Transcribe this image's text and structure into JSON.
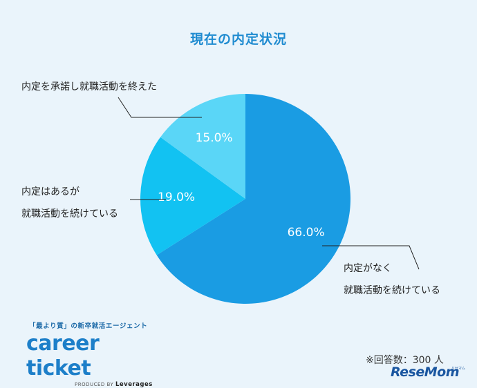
{
  "chart_data": {
    "type": "pie",
    "title": "現在の内定状況",
    "slices": [
      {
        "label_lines": [
          "内定がなく",
          "就職活動を続けている"
        ],
        "value": 66.0,
        "value_label": "66.0%",
        "color": "#1a9ce3"
      },
      {
        "label_lines": [
          "内定はあるが",
          "就職活動を続けている"
        ],
        "value": 19.0,
        "value_label": "19.0%",
        "color": "#12c2f2"
      },
      {
        "label_lines": [
          "内定を承諾し就職活動を終えた"
        ],
        "value": 15.0,
        "value_label": "15.0%",
        "color": "#5ad6f7"
      }
    ]
  },
  "footer": {
    "respondents_note": "※回答数：300 人"
  },
  "brand": {
    "tagline": "「最より質」の新卒就活エージェント",
    "logo": "career ticket",
    "produced_by": "PRODUCED BY",
    "company": "Leverages"
  },
  "watermark": {
    "text": "ReseMom",
    "sub": "リセマム"
  }
}
